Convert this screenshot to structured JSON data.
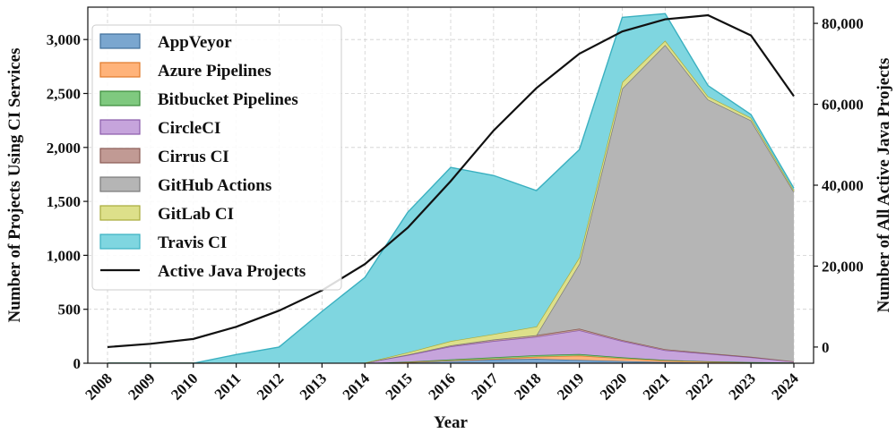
{
  "chart_data": {
    "type": "area",
    "stacked": true,
    "x": [
      2008,
      2009,
      2010,
      2011,
      2012,
      2013,
      2014,
      2015,
      2016,
      2017,
      2018,
      2019,
      2020,
      2021,
      2022,
      2023,
      2024
    ],
    "xlabel": "Year",
    "ylabel": "Number of Projects Using CI Services",
    "y2label": "Number of All Active Java Projects",
    "ylim": [
      0,
      3300
    ],
    "y2lim": [
      -4000,
      84000
    ],
    "yticks": [
      0,
      500,
      1000,
      1500,
      2000,
      2500,
      3000
    ],
    "ytick_labels": [
      "0",
      "500",
      "1,000",
      "1,500",
      "2,000",
      "2,500",
      "3,000"
    ],
    "y2ticks": [
      0,
      20000,
      40000,
      60000,
      80000
    ],
    "y2tick_labels": [
      "0",
      "20,000",
      "40,000",
      "60,000",
      "80,000"
    ],
    "grid": true,
    "legend_position": "top-left",
    "series": [
      {
        "name": "AppVeyor",
        "color": "#7aa6cf",
        "edge": "#3f6f9a",
        "values": [
          0,
          0,
          0,
          0,
          0,
          0,
          0,
          10,
          25,
          35,
          40,
          30,
          20,
          10,
          5,
          3,
          2
        ]
      },
      {
        "name": "Azure Pipelines",
        "color": "#ffb37a",
        "edge": "#e07a2a",
        "values": [
          0,
          0,
          0,
          0,
          0,
          0,
          0,
          0,
          0,
          5,
          20,
          40,
          25,
          15,
          10,
          5,
          3
        ]
      },
      {
        "name": "Bitbucket Pipelines",
        "color": "#7fc97f",
        "edge": "#3a8a3a",
        "values": [
          0,
          0,
          0,
          0,
          0,
          0,
          0,
          5,
          10,
          15,
          15,
          15,
          10,
          5,
          3,
          2,
          1
        ]
      },
      {
        "name": "CircleCI",
        "color": "#c6a4dc",
        "edge": "#8a5aab",
        "values": [
          0,
          0,
          0,
          0,
          0,
          0,
          5,
          60,
          120,
          150,
          170,
          220,
          150,
          90,
          70,
          45,
          10
        ]
      },
      {
        "name": "Cirrus CI",
        "color": "#c19a94",
        "edge": "#8a5a54",
        "values": [
          0,
          0,
          0,
          0,
          0,
          0,
          0,
          5,
          10,
          15,
          15,
          15,
          10,
          10,
          5,
          5,
          1
        ]
      },
      {
        "name": "GitHub Actions",
        "color": "#b5b5b5",
        "edge": "#7a7a7a",
        "values": [
          0,
          0,
          0,
          0,
          0,
          0,
          0,
          0,
          0,
          0,
          0,
          600,
          2330,
          2820,
          2350,
          2190,
          1570
        ]
      },
      {
        "name": "GitLab CI",
        "color": "#dde08a",
        "edge": "#a8ab3a",
        "values": [
          0,
          0,
          0,
          0,
          0,
          0,
          0,
          20,
          40,
          50,
          80,
          60,
          60,
          40,
          30,
          25,
          15
        ]
      },
      {
        "name": "Travis CI",
        "color": "#7fd6e0",
        "edge": "#3ab0c0",
        "values": [
          0,
          0,
          0,
          80,
          150,
          480,
          790,
          1300,
          1610,
          1470,
          1260,
          1000,
          600,
          250,
          100,
          30,
          20
        ]
      }
    ],
    "line_series": {
      "name": "Active Java Projects",
      "color": "#111111",
      "values": [
        0,
        800,
        2000,
        5000,
        9000,
        14000,
        20500,
        29500,
        41000,
        53500,
        64000,
        72500,
        78000,
        81000,
        82000,
        77000,
        62000
      ]
    }
  }
}
